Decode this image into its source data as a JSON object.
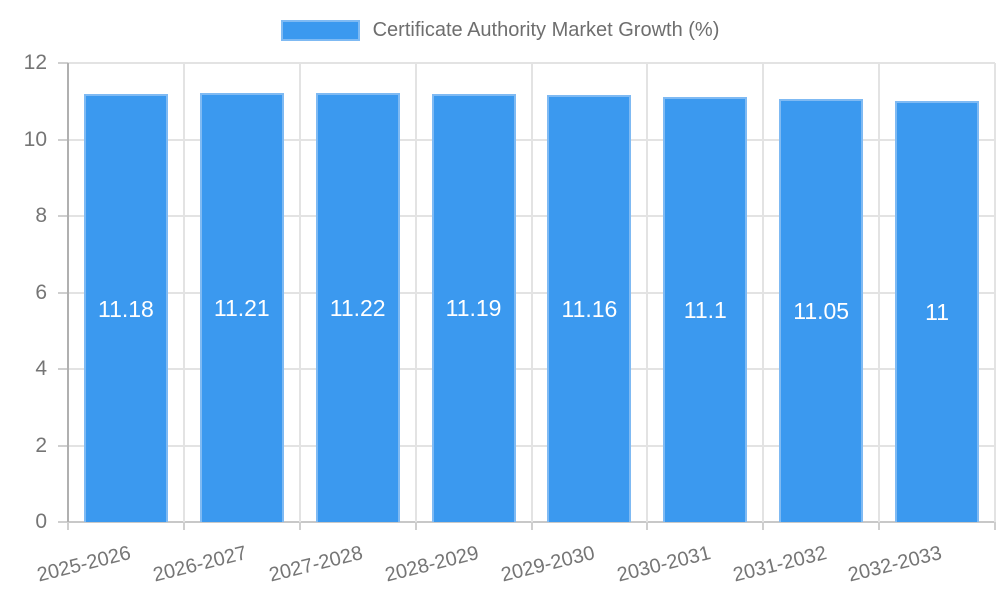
{
  "chart_data": {
    "type": "bar",
    "title": "",
    "legend_label": "Certificate Authority Market Growth (%)",
    "legend_position": "top",
    "categories": [
      "2025-2026",
      "2026-2027",
      "2027-2028",
      "2028-2029",
      "2029-2030",
      "2030-2031",
      "2031-2032",
      "2032-2033"
    ],
    "values": [
      11.18,
      11.21,
      11.22,
      11.19,
      11.16,
      11.1,
      11.05,
      11
    ],
    "value_labels": [
      "11.18",
      "11.21",
      "11.22",
      "11.19",
      "11.16",
      "11.1",
      "11.05",
      "11"
    ],
    "xlabel": "",
    "ylabel": "",
    "ylim": [
      0,
      12
    ],
    "yticks": [
      0,
      2,
      4,
      6,
      8,
      10,
      12
    ],
    "grid": true,
    "bar_color": "#3b99ef",
    "bar_border_color": "#7fbaf3",
    "value_label_color": "#ffffff",
    "tick_label_color": "#757575",
    "gridline_color": "#e3e3e3",
    "axis_line_color": "#b0b0b0"
  }
}
